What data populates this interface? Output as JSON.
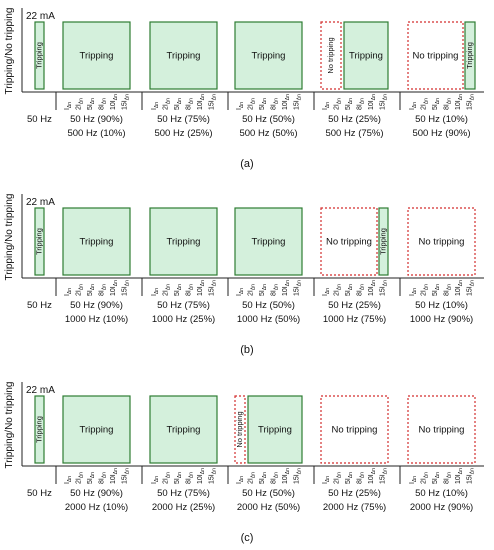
{
  "current_label": "22 mA",
  "y_axis_label": "Tripping/No tripping",
  "tripping": "Tripping",
  "no_tripping": "No tripping",
  "reference_freq": "50 Hz",
  "tick_labels": [
    "I",
    "2I",
    "5I",
    "8I",
    "10I",
    "15I"
  ],
  "tick_subscript": "Δn",
  "colors": {
    "trip_fill": "#d4f0dc",
    "trip_stroke": "#2e7d32",
    "notrip_stroke": "#d32f2f"
  },
  "panels": [
    {
      "label": "(a)",
      "groups": [
        {
          "freq1": "50 Hz (90%)",
          "freq2": "500 Hz (10%)",
          "state": "tripping"
        },
        {
          "freq1": "50 Hz (75%)",
          "freq2": "500 Hz (25%)",
          "state": "tripping"
        },
        {
          "freq1": "50 Hz (50%)",
          "freq2": "500 Hz (50%)",
          "state": "tripping"
        },
        {
          "freq1": "50 Hz (25%)",
          "freq2": "500 Hz (75%)",
          "state": "mixed-notrip-small"
        },
        {
          "freq1": "50 Hz (10%)",
          "freq2": "500 Hz (90%)",
          "state": "mixed-trip-small"
        }
      ]
    },
    {
      "label": "(b)",
      "groups": [
        {
          "freq1": "50 Hz (90%)",
          "freq2": "1000 Hz (10%)",
          "state": "tripping"
        },
        {
          "freq1": "50 Hz (75%)",
          "freq2": "1000 Hz (25%)",
          "state": "tripping"
        },
        {
          "freq1": "50 Hz (50%)",
          "freq2": "1000 Hz (50%)",
          "state": "tripping"
        },
        {
          "freq1": "50 Hz (25%)",
          "freq2": "1000 Hz (75%)",
          "state": "mixed-trip-small"
        },
        {
          "freq1": "50 Hz (10%)",
          "freq2": "1000 Hz (90%)",
          "state": "notripping"
        }
      ]
    },
    {
      "label": "(c)",
      "groups": [
        {
          "freq1": "50 Hz (90%)",
          "freq2": "2000 Hz (10%)",
          "state": "tripping"
        },
        {
          "freq1": "50 Hz (75%)",
          "freq2": "2000 Hz (25%)",
          "state": "tripping"
        },
        {
          "freq1": "50 Hz (50%)",
          "freq2": "2000 Hz (50%)",
          "state": "mixed-notrip-small"
        },
        {
          "freq1": "50 Hz (25%)",
          "freq2": "2000 Hz (75%)",
          "state": "notripping"
        },
        {
          "freq1": "50 Hz (10%)",
          "freq2": "2000 Hz (90%)",
          "state": "notripping"
        }
      ]
    }
  ]
}
